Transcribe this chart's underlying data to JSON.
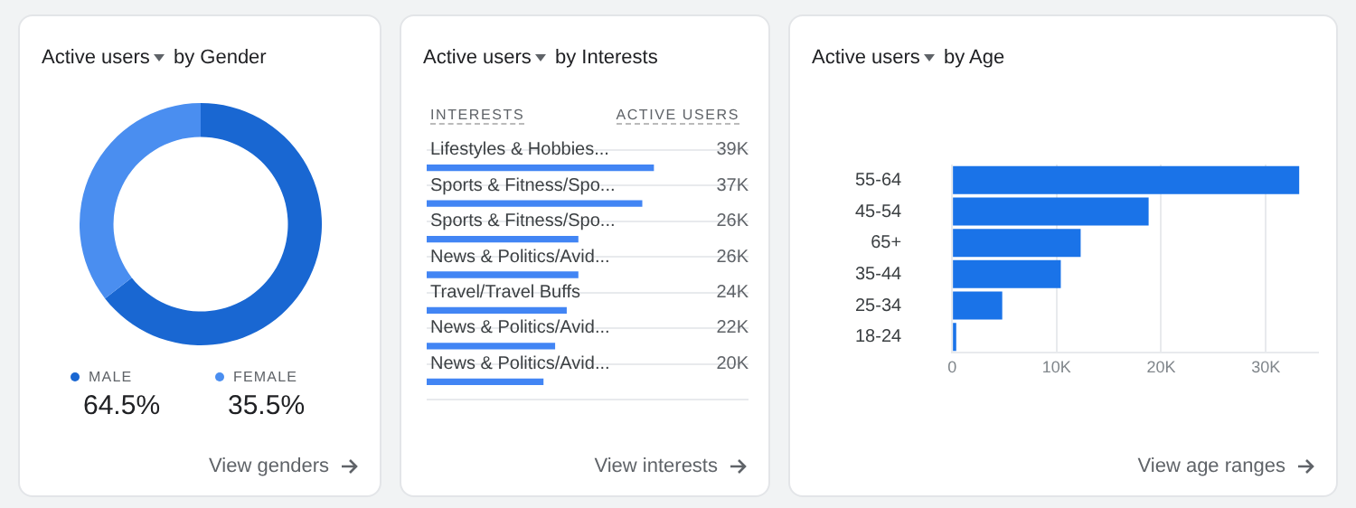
{
  "chart_data": [
    {
      "type": "donut",
      "title": "Active users by Gender",
      "categories": [
        "MALE",
        "FEMALE"
      ],
      "values": [
        64.5,
        35.5
      ],
      "colors": [
        "#1967d2",
        "#4a8ef0"
      ],
      "value_labels": [
        "64.5%",
        "35.5%"
      ],
      "legend": "bottom",
      "annotations": [
        "View genders"
      ]
    },
    {
      "type": "bar",
      "orientation": "horizontal",
      "title": "Active users by Interests",
      "ylabel": "INTERESTS",
      "xlabel": "ACTIVE USERS",
      "categories": [
        "Lifestyles & Hobbies...",
        "Sports & Fitness/Spo...",
        "Sports & Fitness/Spo...",
        "News & Politics/Avid...",
        "Travel/Travel Buffs",
        "News & Politics/Avid...",
        "News & Politics/Avid..."
      ],
      "values": [
        39000,
        37000,
        26000,
        26000,
        24000,
        22000,
        20000
      ],
      "value_labels": [
        "39K",
        "37K",
        "26K",
        "26K",
        "24K",
        "22K",
        "20K"
      ],
      "color": "#4285f4",
      "grid": "y",
      "tick_labels": "y",
      "legend": false,
      "annotations": [
        "View interests"
      ]
    },
    {
      "type": "bar",
      "orientation": "horizontal",
      "title": "Active users by Age",
      "categories": [
        "55-64",
        "45-54",
        "65+",
        "35-44",
        "25-34",
        "18-24"
      ],
      "values": [
        33200,
        18800,
        12300,
        10400,
        4800,
        400
      ],
      "color": "#1a73e8",
      "xlim": [
        0,
        35000
      ],
      "xticks": [
        0,
        {
          "value": 10000,
          "label": "10K"
        },
        {
          "value": 20000,
          "label": "20K"
        },
        {
          "value": 30000,
          "label": "30K"
        }
      ],
      "grid": "x",
      "legend": false,
      "annotations": [
        "View age ranges"
      ]
    }
  ]
}
